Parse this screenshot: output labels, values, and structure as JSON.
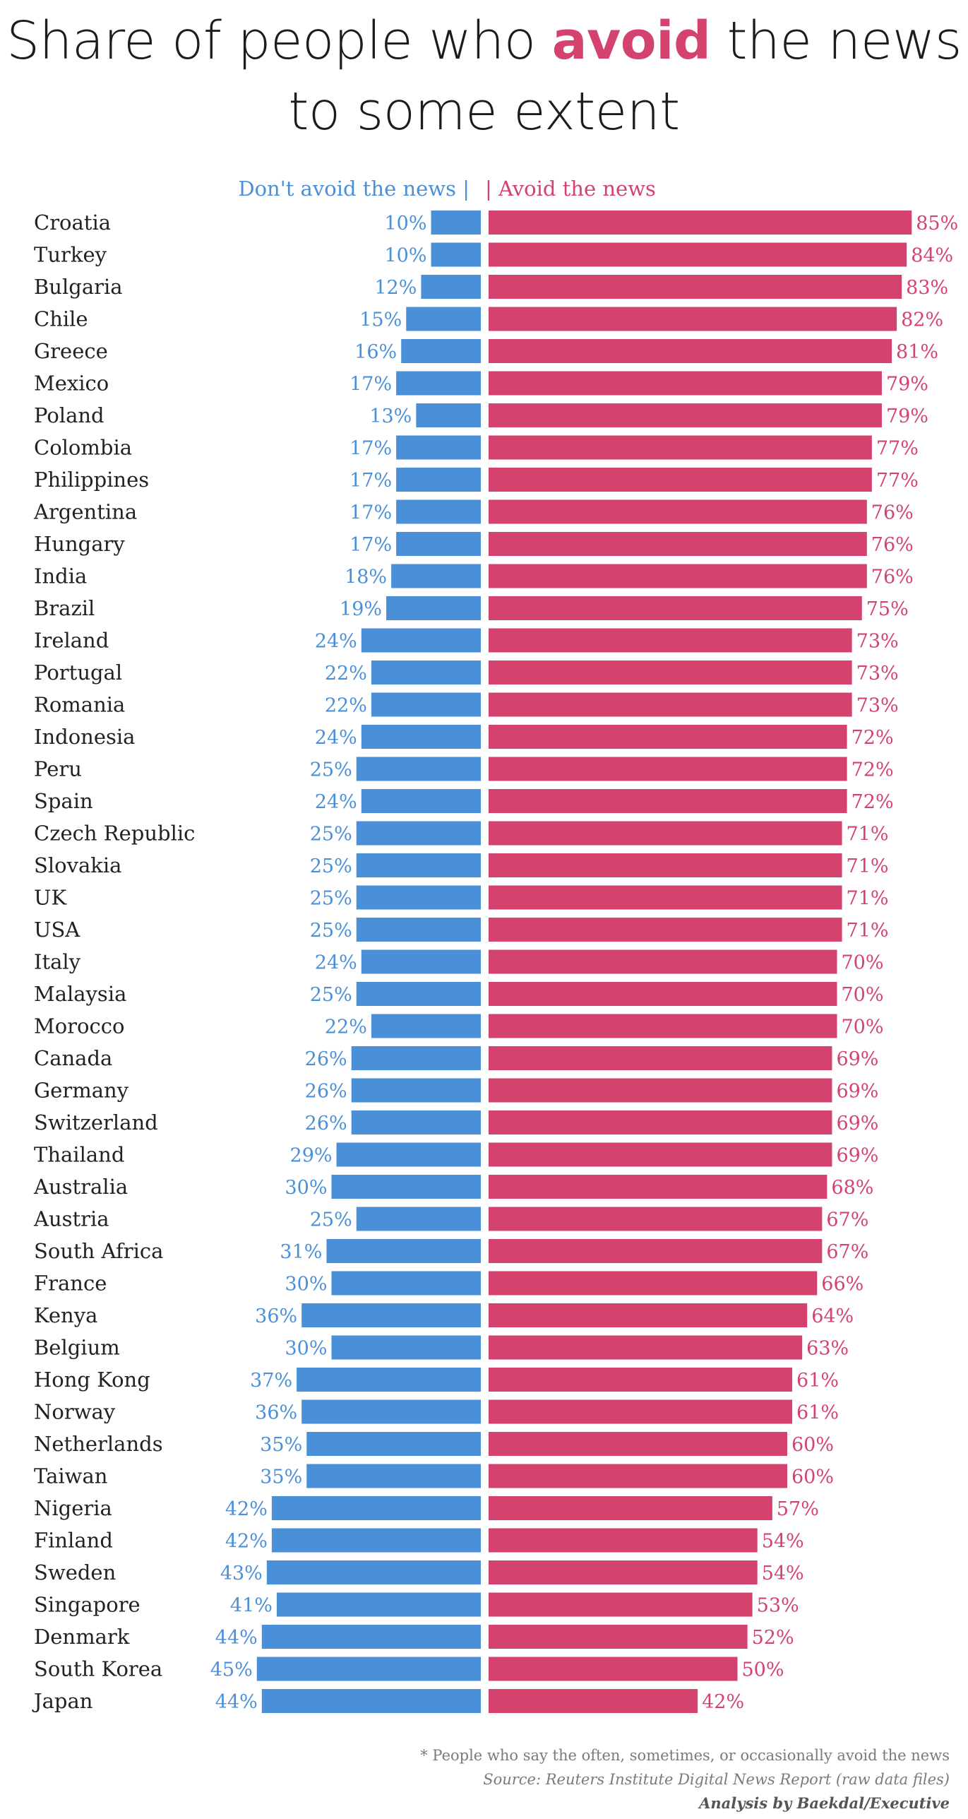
{
  "title": {
    "line1_before": "Share of people who",
    "line1_emphasis": "avoid",
    "line1_after": "the news",
    "line2": "to some extent"
  },
  "colors": {
    "avoid": "#d4426e",
    "dont_avoid": "#4a90d9",
    "text": "#222222"
  },
  "chart_data": {
    "type": "bar",
    "layout": "diverging-horizontal",
    "title": "Share of people who avoid the news to some extent",
    "legend": {
      "left": "Don't avoid the news |",
      "right": "| Avoid the news"
    },
    "xlim": [
      0,
      100
    ],
    "unit": "%",
    "categories": [
      "Croatia",
      "Turkey",
      "Bulgaria",
      "Chile",
      "Greece",
      "Mexico",
      "Poland",
      "Colombia",
      "Philippines",
      "Argentina",
      "Hungary",
      "India",
      "Brazil",
      "Ireland",
      "Portugal",
      "Romania",
      "Indonesia",
      "Peru",
      "Spain",
      "Czech Republic",
      "Slovakia",
      "UK",
      "USA",
      "Italy",
      "Malaysia",
      "Morocco",
      "Canada",
      "Germany",
      "Switzerland",
      "Thailand",
      "Australia",
      "Austria",
      "South Africa",
      "France",
      "Kenya",
      "Belgium",
      "Hong Kong",
      "Norway",
      "Netherlands",
      "Taiwan",
      "Nigeria",
      "Finland",
      "Sweden",
      "Singapore",
      "Denmark",
      "South Korea",
      "Japan"
    ],
    "series": [
      {
        "name": "Don't avoid the news",
        "values": [
          10,
          10,
          12,
          15,
          16,
          17,
          13,
          17,
          17,
          17,
          17,
          18,
          19,
          24,
          22,
          22,
          24,
          25,
          24,
          25,
          25,
          25,
          25,
          24,
          25,
          22,
          26,
          26,
          26,
          29,
          30,
          25,
          31,
          30,
          36,
          30,
          37,
          36,
          35,
          35,
          42,
          42,
          43,
          41,
          44,
          45,
          44
        ]
      },
      {
        "name": "Avoid the news",
        "values": [
          85,
          84,
          83,
          82,
          81,
          79,
          79,
          77,
          77,
          76,
          76,
          76,
          75,
          73,
          73,
          73,
          72,
          72,
          72,
          71,
          71,
          71,
          71,
          70,
          70,
          70,
          69,
          69,
          69,
          69,
          68,
          67,
          67,
          66,
          64,
          63,
          61,
          61,
          60,
          60,
          57,
          54,
          54,
          53,
          52,
          50,
          42
        ]
      }
    ]
  },
  "footer": {
    "note": "* People who say the often, sometimes, or occasionally avoid the news",
    "source": "Source: Reuters Institute Digital News Report (raw data files)",
    "analysis": "Analysis by Baekdal/Executive"
  }
}
